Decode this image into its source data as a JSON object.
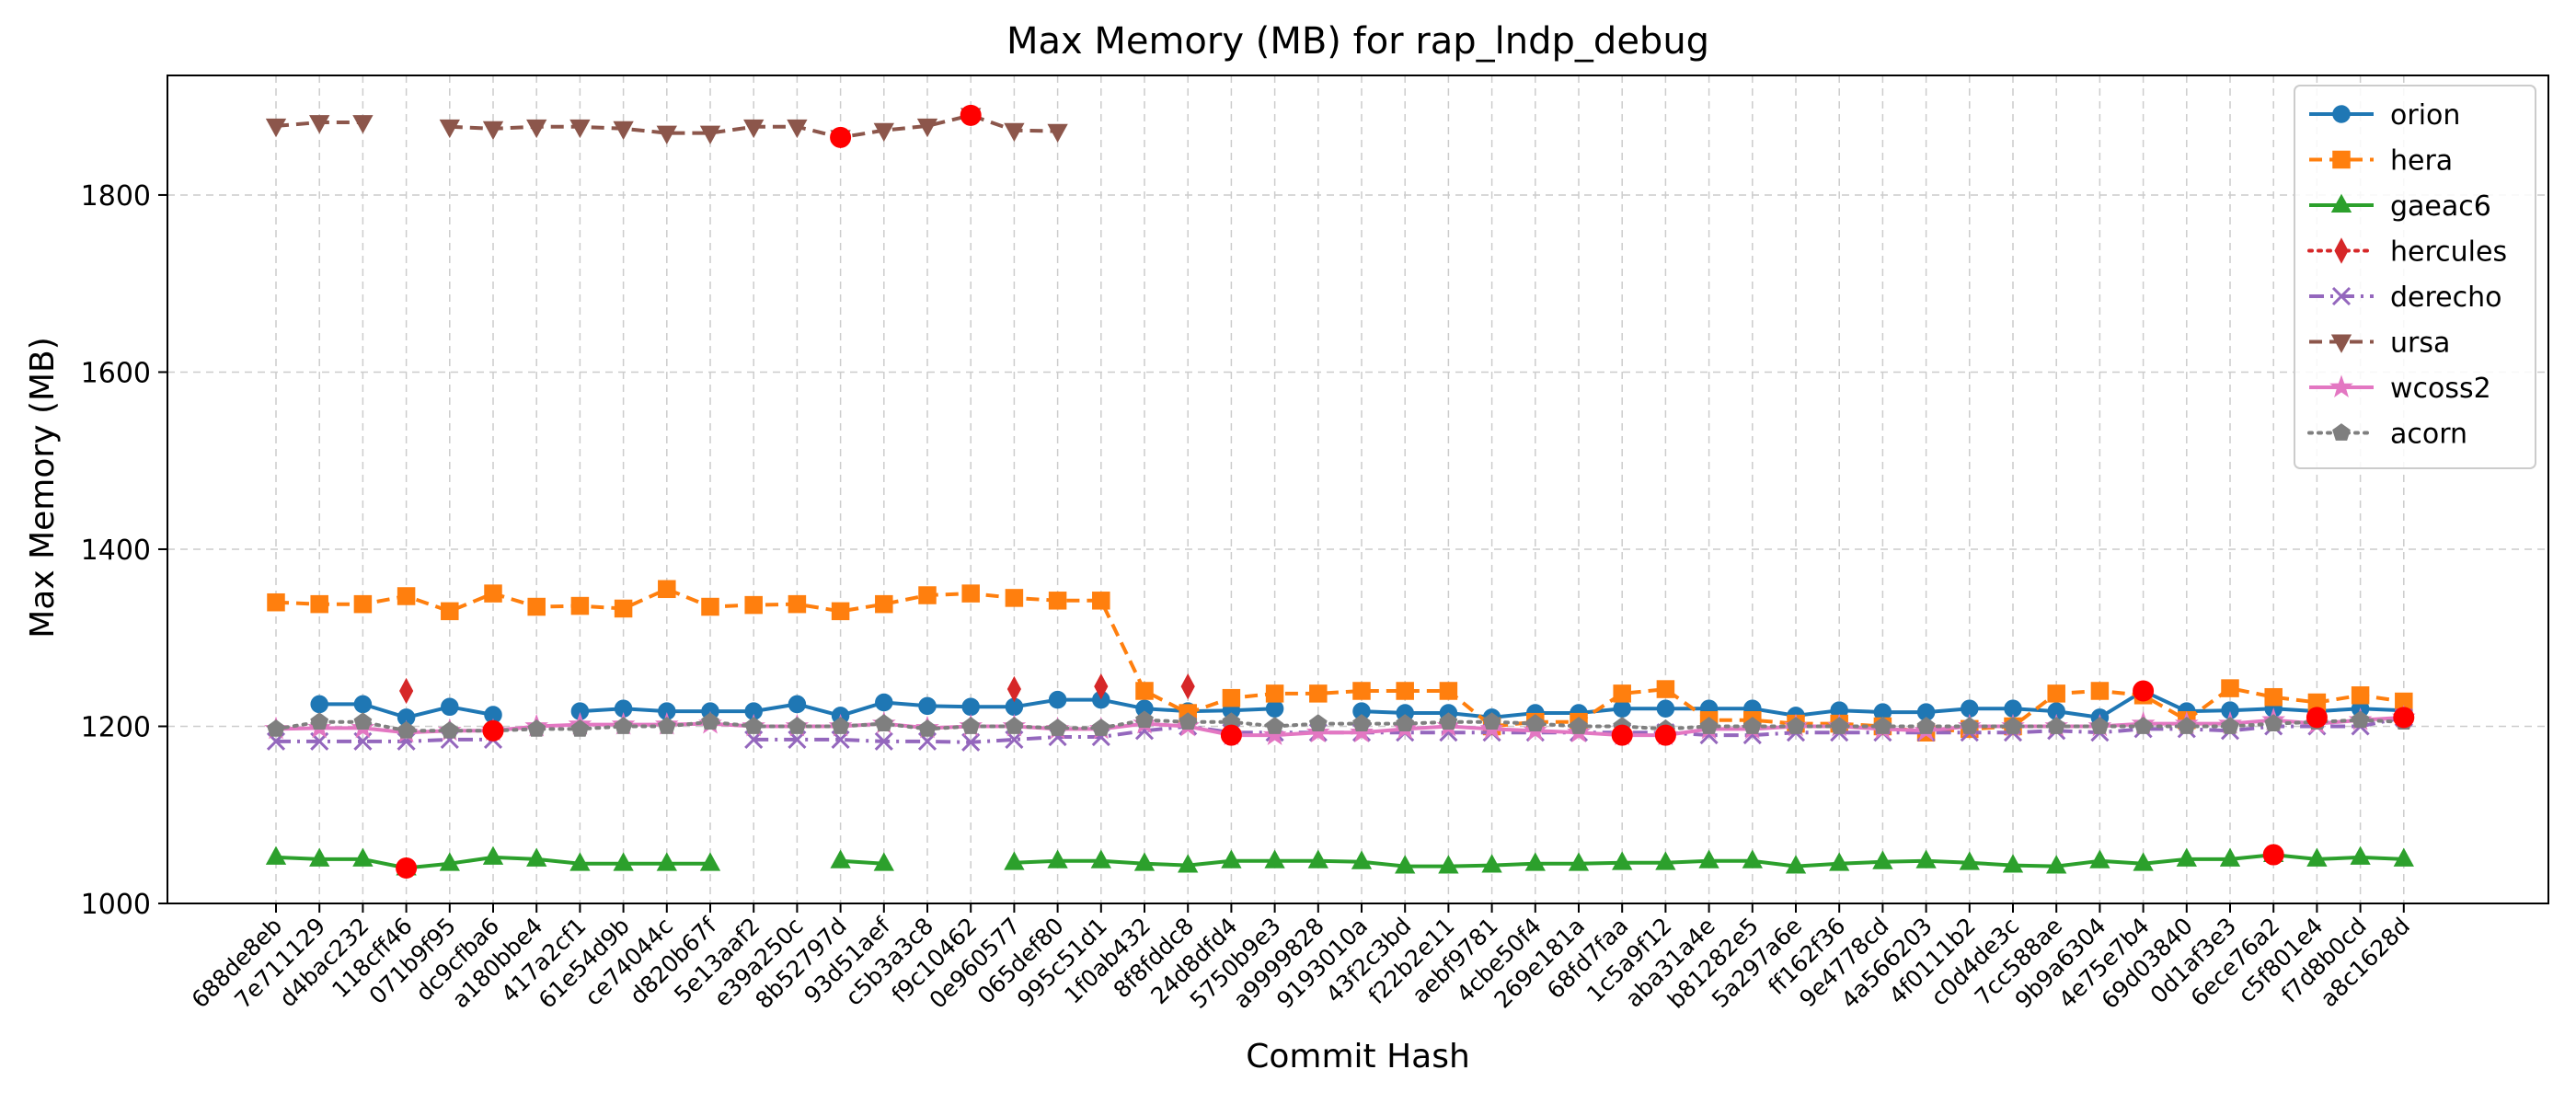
{
  "chart_data": {
    "type": "line",
    "title": "Max Memory (MB) for rap_lndp_debug",
    "xlabel": "Commit Hash",
    "ylabel": "Max Memory (MB)",
    "ylim": [
      1000,
      1935
    ],
    "yticks": [
      1000,
      1200,
      1400,
      1600,
      1800
    ],
    "grid": true,
    "legend_position": "top-right",
    "categories": [
      "688de8eb",
      "7e711129",
      "d4bac232",
      "118cff46",
      "071b9f95",
      "dc9cfba6",
      "a180bbe4",
      "417a2cf1",
      "61e54d9b",
      "ce74044c",
      "d820b67f",
      "5e13aaf2",
      "e39a250c",
      "8b52797d",
      "93d51aef",
      "c5b3a3c8",
      "f9c10462",
      "0e960577",
      "065def80",
      "995c51d1",
      "1f0ab432",
      "8f8fddc8",
      "24d8dfd4",
      "5750b9e3",
      "a9999828",
      "9193010a",
      "43f2c3bd",
      "f22b2e11",
      "aebf9781",
      "4cbe50f4",
      "269e181a",
      "68fd7faa",
      "1c5a9f12",
      "aba31a4e",
      "b81282e5",
      "5a297a6e",
      "ff162f36",
      "9e4778cd",
      "4a566203",
      "4f0111b2",
      "c0d4de3c",
      "7cc588ae",
      "9b9a6304",
      "4e75e7b4",
      "69d03840",
      "0d1af3e3",
      "6ece76a2",
      "c5f801e4",
      "f7d8b0cd",
      "a8c1628d"
    ],
    "series": [
      {
        "name": "orion",
        "color": "#1f77b4",
        "marker": "circle",
        "dash": "solid",
        "values": [
          null,
          1225,
          1225,
          1210,
          1222,
          1213,
          null,
          1217,
          1220,
          1217,
          1217,
          1217,
          1225,
          1212,
          1227,
          1223,
          1222,
          1222,
          1230,
          1230,
          1220,
          1217,
          1218,
          1220,
          null,
          1217,
          1215,
          1215,
          1210,
          1215,
          1215,
          1220,
          1220,
          1220,
          1220,
          1212,
          1218,
          1216,
          1216,
          1220,
          1220,
          1217,
          1210,
          1240,
          1217,
          1218,
          1220,
          1217,
          1220,
          1218
        ]
      },
      {
        "name": "hera",
        "color": "#ff7f0e",
        "marker": "square",
        "dash": "dashed",
        "values": [
          1340,
          1338,
          1338,
          1347,
          1330,
          1350,
          1335,
          1336,
          1333,
          1355,
          1335,
          1337,
          1338,
          1330,
          1338,
          1348,
          1350,
          1345,
          1342,
          1342,
          1240,
          1215,
          1232,
          1237,
          1237,
          1240,
          1240,
          1240,
          1200,
          1205,
          1205,
          1237,
          1242,
          1207,
          1207,
          1203,
          1203,
          1200,
          1193,
          1197,
          1200,
          1237,
          1240,
          1235,
          1207,
          1243,
          1233,
          1227,
          1235,
          1228
        ]
      },
      {
        "name": "gaeac6",
        "color": "#2ca02c",
        "marker": "triangle-up",
        "dash": "solid",
        "values": [
          1052,
          1050,
          1050,
          1040,
          1045,
          1052,
          1050,
          1045,
          1045,
          1045,
          1045,
          null,
          null,
          1048,
          1045,
          null,
          null,
          1046,
          1048,
          1048,
          1045,
          1043,
          1048,
          1048,
          1048,
          1047,
          1042,
          1042,
          1043,
          1045,
          1045,
          1046,
          1046,
          1048,
          1048,
          1042,
          1045,
          1047,
          1048,
          1046,
          1043,
          1042,
          1048,
          1045,
          1050,
          1050,
          1055,
          1050,
          1052,
          1050
        ]
      },
      {
        "name": "hercules",
        "color": "#d62728",
        "marker": "diamond",
        "dash": "dotted",
        "values": [
          null,
          null,
          null,
          1240,
          null,
          null,
          null,
          null,
          null,
          null,
          null,
          null,
          null,
          null,
          null,
          null,
          null,
          1242,
          null,
          1245,
          null,
          1245,
          null,
          null,
          null,
          null,
          null,
          null,
          null,
          null,
          null,
          null,
          null,
          null,
          null,
          null,
          null,
          null,
          null,
          null,
          null,
          null,
          null,
          null,
          null,
          null,
          null,
          null,
          null,
          null
        ]
      },
      {
        "name": "derecho",
        "color": "#9467bd",
        "marker": "x",
        "dash": "dashdot",
        "values": [
          1183,
          1183,
          1183,
          1183,
          1185,
          1185,
          null,
          null,
          null,
          null,
          null,
          1185,
          1185,
          1185,
          1183,
          1183,
          1182,
          1185,
          1188,
          1188,
          1195,
          1200,
          1193,
          1193,
          1193,
          1193,
          1193,
          1193,
          1193,
          1193,
          1193,
          1193,
          1193,
          1190,
          1190,
          1193,
          1193,
          1193,
          1193,
          1193,
          1193,
          1195,
          1193,
          1197,
          1197,
          1195,
          1200,
          1200,
          1200,
          1210
        ]
      },
      {
        "name": "ursa",
        "color": "#8c564b",
        "marker": "triangle-down",
        "dash": "dashed",
        "values": [
          1878,
          1882,
          1882,
          null,
          1877,
          1875,
          1877,
          1877,
          1875,
          1870,
          1870,
          1877,
          1877,
          1865,
          1873,
          1878,
          1890,
          1873,
          1872,
          null,
          null,
          null,
          null,
          null,
          null,
          null,
          null,
          null,
          null,
          null,
          null,
          null,
          null,
          null,
          null,
          null,
          null,
          null,
          null,
          null,
          null,
          null,
          null,
          null,
          null,
          null,
          null,
          null,
          null,
          null
        ]
      },
      {
        "name": "wcoss2",
        "color": "#e377c2",
        "marker": "star",
        "dash": "solid",
        "values": [
          1197,
          1198,
          1198,
          1193,
          1195,
          1195,
          1200,
          1202,
          1202,
          1202,
          1203,
          1200,
          1200,
          1200,
          1203,
          1198,
          1200,
          1200,
          1197,
          1197,
          1203,
          1200,
          1190,
          1190,
          1193,
          1193,
          1197,
          1200,
          1197,
          1195,
          1193,
          1190,
          1190,
          1197,
          1197,
          1200,
          1200,
          1197,
          1195,
          1200,
          1200,
          1200,
          1200,
          1203,
          1203,
          1203,
          1207,
          1203,
          1207,
          1210
        ]
      },
      {
        "name": "acorn",
        "color": "#7f7f7f",
        "marker": "pentagon",
        "dash": "dotted",
        "values": [
          1197,
          1205,
          1205,
          1195,
          1195,
          1195,
          1197,
          1197,
          1200,
          1200,
          1205,
          1200,
          1200,
          1200,
          1203,
          1197,
          1200,
          1200,
          1198,
          1198,
          1207,
          1205,
          1205,
          1200,
          1203,
          1203,
          1203,
          1205,
          1205,
          1203,
          1200,
          1200,
          1197,
          1200,
          1200,
          1200,
          1200,
          1200,
          1200,
          1200,
          1200,
          1200,
          1200,
          1200,
          1200,
          1200,
          1203,
          1205,
          1207,
          1205
        ]
      }
    ],
    "highlights": [
      {
        "x": "118cff46",
        "y": 1040
      },
      {
        "x": "dc9cfba6",
        "y": 1195
      },
      {
        "x": "8b52797d",
        "y": 1865
      },
      {
        "x": "f9c10462",
        "y": 1890
      },
      {
        "x": "24d8dfd4",
        "y": 1190
      },
      {
        "x": "68fd7faa",
        "y": 1190
      },
      {
        "x": "1c5a9f12",
        "y": 1190
      },
      {
        "x": "4e75e7b4",
        "y": 1240
      },
      {
        "x": "6ece76a2",
        "y": 1055
      },
      {
        "x": "c5f801e4",
        "y": 1210
      },
      {
        "x": "a8c1628d",
        "y": 1210
      }
    ]
  }
}
